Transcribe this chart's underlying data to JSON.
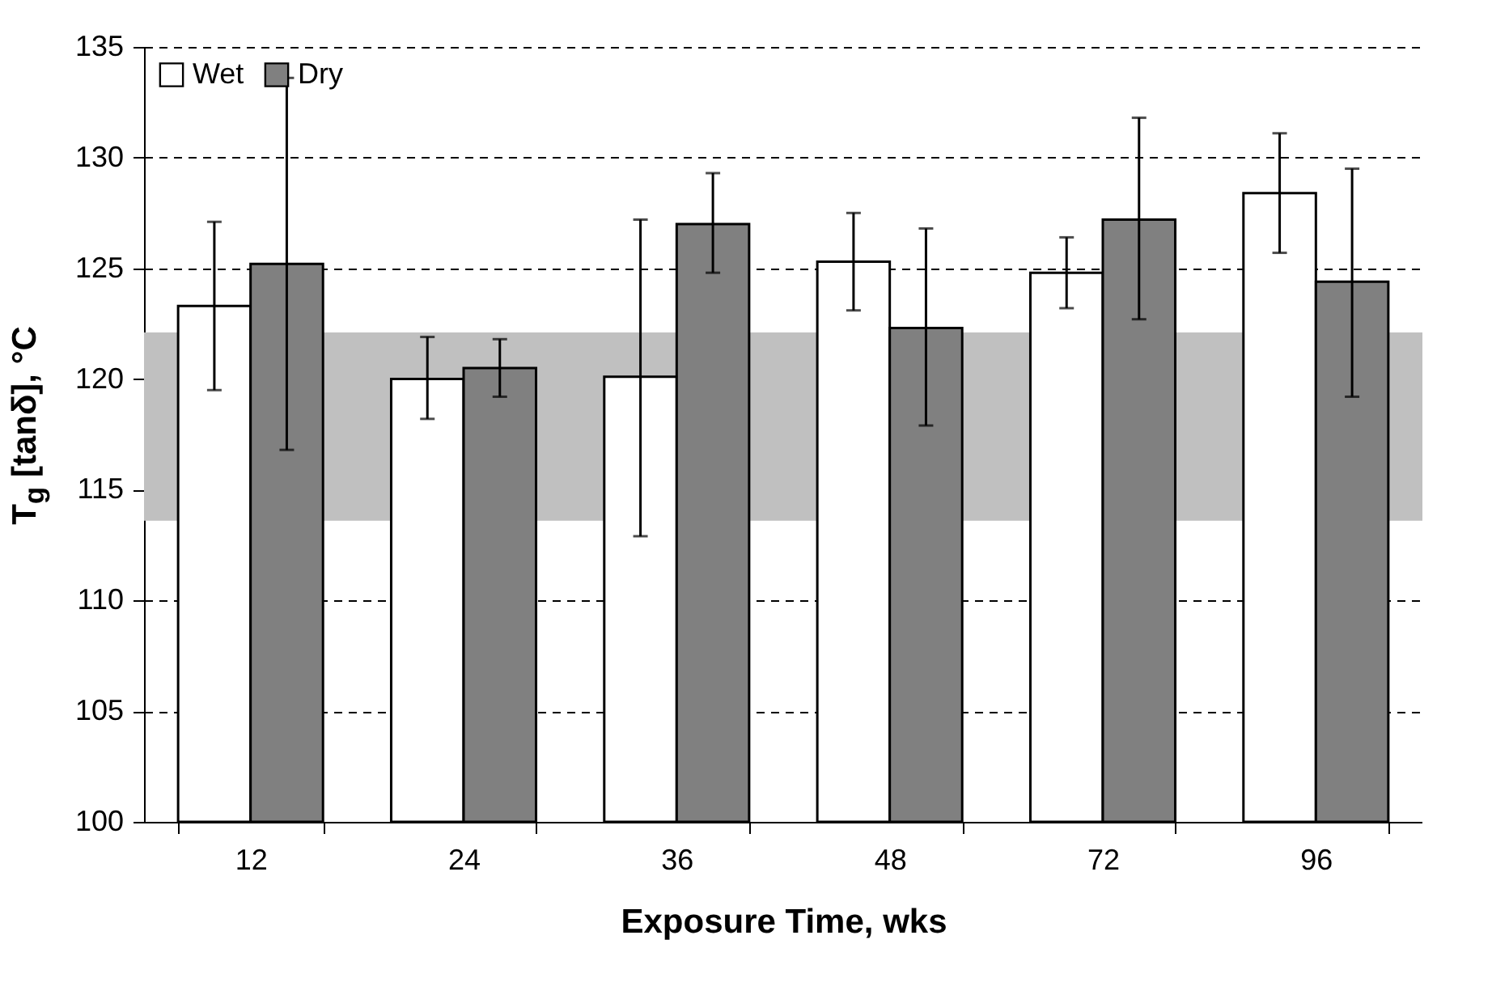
{
  "chart_data": {
    "type": "bar",
    "xlabel": "Exposure Time, wks",
    "ylabel": "T$_{g}$ [tanδ], °C",
    "categories": [
      "12",
      "24",
      "36",
      "48",
      "72",
      "96"
    ],
    "series": [
      {
        "name": "Wet",
        "color": "#ffffff",
        "values": [
          123.3,
          120.0,
          120.1,
          125.3,
          124.8,
          128.4
        ],
        "errors": [
          [
            119.5,
            127.1
          ],
          [
            118.2,
            121.9
          ],
          [
            112.9,
            127.2
          ],
          [
            123.1,
            127.5
          ],
          [
            123.2,
            126.4
          ],
          [
            125.7,
            131.1
          ]
        ]
      },
      {
        "name": "Dry",
        "color": "#808080",
        "values": [
          125.2,
          120.5,
          127.0,
          122.3,
          127.2,
          124.4
        ],
        "errors": [
          [
            116.8,
            133.6
          ],
          [
            119.2,
            121.8
          ],
          [
            124.8,
            129.3
          ],
          [
            117.9,
            126.8
          ],
          [
            122.7,
            131.8
          ],
          [
            119.2,
            129.5
          ]
        ]
      }
    ],
    "ylim": [
      100,
      135
    ],
    "yticks": [
      100,
      105,
      110,
      115,
      120,
      125,
      130,
      135
    ],
    "bands": [
      {
        "axis": "y",
        "from": 113.6,
        "to": 122.1,
        "color": "#c0c0c0"
      }
    ],
    "grid": "y",
    "line_style": "dashed",
    "legend": "top left"
  }
}
